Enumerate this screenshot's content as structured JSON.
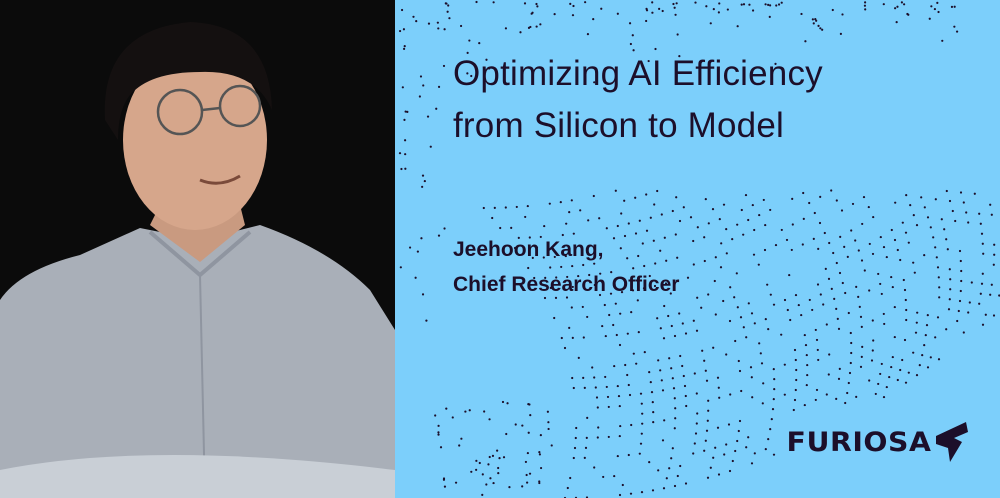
{
  "title_lines": [
    "Optimizing AI Efficiency",
    "from Silicon to Model"
  ],
  "speaker": {
    "name": "Jeehoon Kang,",
    "role": "Chief Research Officer"
  },
  "logo": {
    "text": "FURIOSA",
    "icon": "furiosa-bolt-icon"
  },
  "colors": {
    "background": "#7ccffb",
    "text": "#1c0f2a",
    "photo_background": "#0b0b0b",
    "shirt": "#a9afb8"
  }
}
